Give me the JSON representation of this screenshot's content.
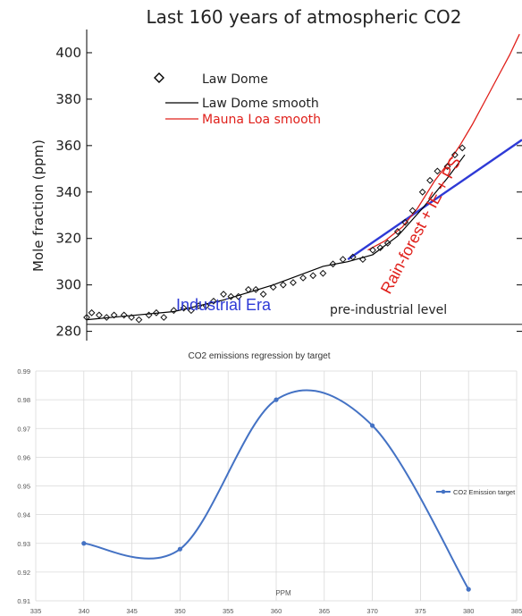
{
  "chart_data": [
    {
      "type": "scatter",
      "title": "Last 160 years of atmospheric CO2",
      "ylabel": "Mole fraction (ppm)",
      "xlabel": "",
      "ylim": [
        276,
        410
      ],
      "xlim": [
        1845,
        2020
      ],
      "yticks": [
        280,
        300,
        320,
        340,
        360,
        380,
        400
      ],
      "grid": false,
      "legend_placement": "top-left",
      "legend": [
        {
          "label": "Law Dome",
          "marker": "diamond",
          "color": "#000000"
        },
        {
          "label": "Law Dome smooth",
          "marker": "line",
          "color": "#000000"
        },
        {
          "label": "Mauna Loa smooth",
          "marker": "line",
          "color": "#e0201b"
        }
      ],
      "series": [
        {
          "name": "Law Dome",
          "kind": "points",
          "x": [
            1845,
            1847,
            1850,
            1853,
            1856,
            1860,
            1863,
            1866,
            1870,
            1873,
            1876,
            1880,
            1884,
            1887,
            1890,
            1893,
            1896,
            1900,
            1903,
            1906,
            1910,
            1913,
            1916,
            1920,
            1924,
            1928,
            1932,
            1936,
            1940,
            1944,
            1948,
            1952,
            1956,
            1960,
            1963,
            1966,
            1970,
            1973,
            1976,
            1980,
            1983,
            1986,
            1990,
            1993,
            1996
          ],
          "y": [
            286,
            288,
            287,
            286,
            287,
            287,
            286,
            285,
            287,
            288,
            286,
            289,
            290,
            289,
            291,
            291,
            293,
            296,
            295,
            295,
            298,
            298,
            296,
            299,
            300,
            301,
            303,
            304,
            305,
            309,
            311,
            312,
            311,
            315,
            316,
            318,
            323,
            327,
            332,
            340,
            345,
            349,
            351,
            356,
            359
          ]
        },
        {
          "name": "Law Dome smooth",
          "kind": "line",
          "x": [
            1845,
            1860,
            1880,
            1900,
            1920,
            1940,
            1950,
            1960,
            1970,
            1980,
            1990,
            1997
          ],
          "y": [
            285,
            286.5,
            288.5,
            293.5,
            300,
            308,
            310,
            313,
            321,
            333,
            346,
            356
          ]
        },
        {
          "name": "Mauna Loa smooth",
          "kind": "line",
          "x": [
            1958,
            1965,
            1972,
            1978,
            1985,
            1990,
            1995,
            2000,
            2005,
            2010,
            2015,
            2019
          ],
          "y": [
            315,
            319,
            325,
            333,
            345,
            352,
            360,
            369,
            379,
            389,
            399,
            408
          ]
        },
        {
          "name": "",
          "kind": "trend",
          "color": "#2e3ad6",
          "x": [
            1950,
            2020
          ],
          "y": [
            311,
            362.5
          ]
        },
        {
          "name": "",
          "kind": "hline",
          "color": "#000000",
          "y": 283
        }
      ],
      "annotations": [
        {
          "text": "Industrial Era",
          "color": "#2e3ad6"
        },
        {
          "text": "pre-industrial level",
          "color": "#000000"
        },
        {
          "text": "Rain-forest + IE + PS",
          "color": "#e0201b"
        }
      ]
    },
    {
      "type": "line",
      "title": "CO2 emissions regression by target",
      "xlabel": "PPM",
      "ylabel": "",
      "xlim": [
        335,
        385
      ],
      "ylim": [
        0.91,
        0.99
      ],
      "xticks": [
        335,
        340,
        345,
        350,
        355,
        360,
        365,
        370,
        375,
        380,
        385
      ],
      "yticks": [
        0.91,
        0.92,
        0.93,
        0.94,
        0.95,
        0.96,
        0.97,
        0.98,
        0.99
      ],
      "grid": true,
      "legend_placement": "right",
      "color": "#4472c4",
      "series": [
        {
          "name": "CO2 Emission target",
          "x": [
            340,
            350,
            360,
            370,
            380
          ],
          "values": [
            0.93,
            0.928,
            0.98,
            0.971,
            0.914
          ]
        }
      ]
    }
  ]
}
